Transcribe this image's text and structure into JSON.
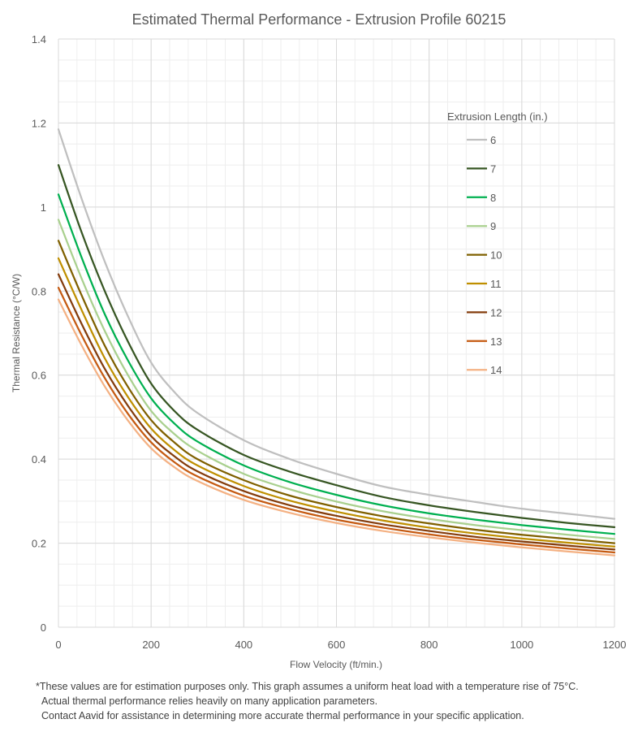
{
  "chart_data": {
    "type": "line",
    "title": "Estimated Thermal Performance - Extrusion Profile 60215",
    "xlabel": "Flow Velocity (ft/min.)",
    "ylabel": "Thermal Resistance (°C/W)",
    "xlim": [
      0,
      1200
    ],
    "ylim": [
      0,
      1.4
    ],
    "xticks": [
      0,
      200,
      400,
      600,
      800,
      1000,
      1200
    ],
    "yticks": [
      0,
      0.2,
      0.4,
      0.6,
      0.8,
      1,
      1.2,
      1.4
    ],
    "ytick_labels": [
      "0",
      "0.2",
      "0.4",
      "0.6",
      "0.8",
      "1",
      "1.2",
      "1.4"
    ],
    "grid": true,
    "legend_title": "Extrusion Length (in.)",
    "legend_position": "right",
    "x": [
      0,
      50,
      100,
      150,
      200,
      250,
      300,
      400,
      500,
      600,
      700,
      800,
      900,
      1000,
      1100,
      1200
    ],
    "series": [
      {
        "name": "6",
        "color": "#BFBFBF",
        "values": [
          1.185,
          1.02,
          0.87,
          0.74,
          0.63,
          0.56,
          0.51,
          0.445,
          0.4,
          0.365,
          0.335,
          0.315,
          0.298,
          0.282,
          0.27,
          0.258
        ]
      },
      {
        "name": "7",
        "color": "#375623",
        "values": [
          1.1,
          0.94,
          0.8,
          0.68,
          0.58,
          0.515,
          0.47,
          0.41,
          0.37,
          0.338,
          0.31,
          0.29,
          0.274,
          0.26,
          0.248,
          0.238
        ]
      },
      {
        "name": "8",
        "color": "#00B050",
        "values": [
          1.03,
          0.88,
          0.745,
          0.635,
          0.545,
          0.485,
          0.442,
          0.385,
          0.345,
          0.315,
          0.29,
          0.271,
          0.256,
          0.243,
          0.232,
          0.222
        ]
      },
      {
        "name": "9",
        "color": "#A9D08E",
        "values": [
          0.97,
          0.83,
          0.705,
          0.6,
          0.515,
          0.46,
          0.42,
          0.365,
          0.328,
          0.299,
          0.276,
          0.258,
          0.243,
          0.231,
          0.22,
          0.21
        ]
      },
      {
        "name": "10",
        "color": "#7F6000",
        "values": [
          0.92,
          0.79,
          0.67,
          0.572,
          0.493,
          0.44,
          0.4,
          0.35,
          0.313,
          0.286,
          0.264,
          0.247,
          0.232,
          0.22,
          0.21,
          0.2
        ]
      },
      {
        "name": "11",
        "color": "#BF8F00",
        "values": [
          0.878,
          0.755,
          0.64,
          0.548,
          0.473,
          0.422,
          0.385,
          0.336,
          0.301,
          0.275,
          0.254,
          0.237,
          0.223,
          0.211,
          0.201,
          0.192
        ]
      },
      {
        "name": "12",
        "color": "#843C0C",
        "values": [
          0.84,
          0.722,
          0.615,
          0.527,
          0.455,
          0.407,
          0.371,
          0.324,
          0.29,
          0.265,
          0.245,
          0.229,
          0.215,
          0.204,
          0.194,
          0.185
        ]
      },
      {
        "name": "13",
        "color": "#C55A11",
        "values": [
          0.808,
          0.695,
          0.593,
          0.508,
          0.44,
          0.393,
          0.359,
          0.313,
          0.281,
          0.256,
          0.237,
          0.221,
          0.208,
          0.197,
          0.187,
          0.178
        ]
      },
      {
        "name": "14",
        "color": "#F4B183",
        "values": [
          0.78,
          0.671,
          0.573,
          0.492,
          0.426,
          0.381,
          0.348,
          0.303,
          0.272,
          0.248,
          0.229,
          0.214,
          0.201,
          0.19,
          0.18,
          0.171
        ]
      }
    ]
  },
  "footnote": {
    "line1": "*These values are for estimation purposes only. This graph assumes a uniform heat load with a temperature rise of 75°C.",
    "line2": "Actual thermal performance relies heavily on many application parameters.",
    "line3": "Contact Aavid for assistance in determining more accurate thermal performance in your specific application."
  }
}
